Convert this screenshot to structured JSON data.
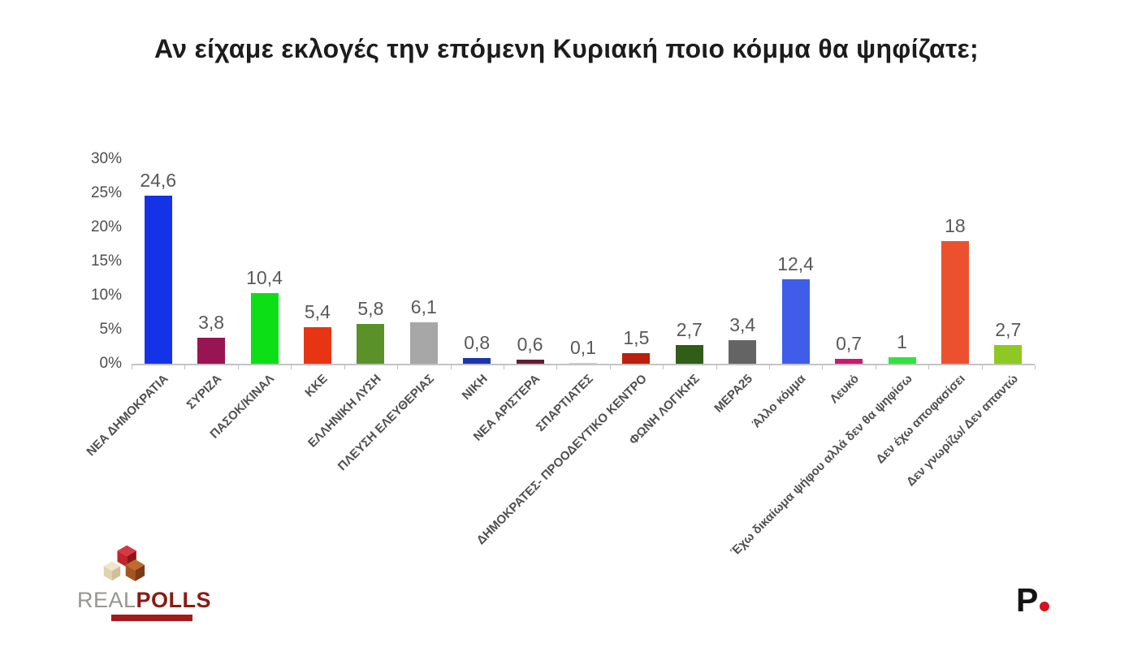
{
  "title": "Αν είχαμε εκλογές την επόμενη Κυριακή ποιο κόμμα θα ψηφίζατε;",
  "chart_data": {
    "type": "bar",
    "title": "Αν είχαμε εκλογές την επόμενη Κυριακή ποιο κόμμα θα ψηφίζατε;",
    "categories": [
      "ΝΕΑ ΔΗΜΟΚΡΑΤΙΑ",
      "ΣΥΡΙΖΑ",
      "ΠΑΣΟΚ/ΚΙΝΑΛ",
      "ΚΚΕ",
      "ΕΛΛΗΝΙΚΗ ΛΥΣΗ",
      "ΠΛΕΥΣΗ ΕΛΕΥΘΕΡΙΑΣ",
      "ΝΙΚΗ",
      "ΝΕΑ ΑΡΙΣΤΕΡΑ",
      "ΣΠΑΡΤΙΑΤΕΣ",
      "ΔΗΜΟΚΡΑΤΕΣ- ΠΡΟΟΔΕΥΤΙΚΟ ΚΕΝΤΡΟ",
      "ΦΩΝΗ ΛΟΓΙΚΗΣ",
      "ΜΕΡΑ25",
      "Άλλο κόμμα",
      "Λευκό",
      "Έχω δικαίωμα ψήφου αλλά δεν θα ψηφίσω",
      "Δεν έχω αποφασίσει",
      "Δεν γνωρίζω/ Δεν απαντώ"
    ],
    "values": [
      24.6,
      3.8,
      10.4,
      5.4,
      5.8,
      6.1,
      0.8,
      0.6,
      0.1,
      1.5,
      2.7,
      3.4,
      12.4,
      0.7,
      1,
      18,
      2.7
    ],
    "value_labels": [
      "24,6",
      "3,8",
      "10,4",
      "5,4",
      "5,8",
      "6,1",
      "0,8",
      "0,6",
      "0,1",
      "1,5",
      "2,7",
      "3,4",
      "12,4",
      "0,7",
      "1",
      "18",
      "2,7"
    ],
    "colors": [
      "#1433e6",
      "#991453",
      "#0ddf16",
      "#e73514",
      "#5a9129",
      "#a7a7a7",
      "#1b35ab",
      "#611d33",
      "#c8d4c5",
      "#bb1f0e",
      "#305d17",
      "#646464",
      "#3f5de9",
      "#ca1970",
      "#2fe23e",
      "#eb512f",
      "#8dc922"
    ],
    "xlabel": "",
    "ylabel": "",
    "ylim": [
      0,
      30
    ],
    "yticks": [
      "0%",
      "5%",
      "10%",
      "15%",
      "20%",
      "25%",
      "30%"
    ],
    "grid": false,
    "legend": "none"
  },
  "branding": {
    "realpolls_real": "REAL",
    "realpolls_polls": "POLLS",
    "publisher_letter": "P",
    "brand_red": "#d6131c",
    "realpolls_dark_red": "#8a1b12"
  }
}
